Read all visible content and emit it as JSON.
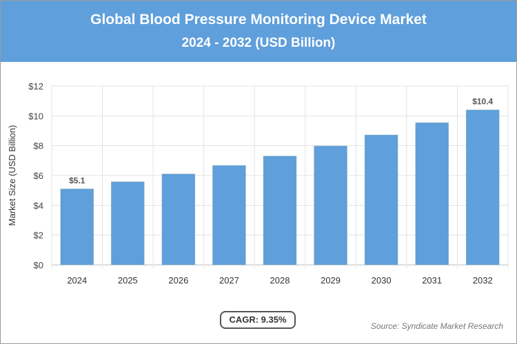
{
  "chart_data": {
    "type": "bar",
    "title": "Global Blood Pressure Monitoring Device Market",
    "subtitle": "2024 - 2032 (USD Billion)",
    "xlabel": "",
    "ylabel": "Market Size (USD Billion)",
    "categories": [
      "2024",
      "2025",
      "2026",
      "2027",
      "2028",
      "2029",
      "2030",
      "2031",
      "2032"
    ],
    "values": [
      5.1,
      5.58,
      6.1,
      6.67,
      7.3,
      7.98,
      8.72,
      9.54,
      10.4
    ],
    "data_labels": {
      "0": "$5.1",
      "8": "$10.4"
    },
    "ylim": [
      0,
      12
    ],
    "yticks": [
      "$0",
      "$2",
      "$4",
      "$6",
      "$8",
      "$10",
      "$12"
    ],
    "grid": true,
    "bar_color": "#5f9fdb"
  },
  "cagr_label": "CAGR: 9.35%",
  "source": "Source: Syndicate Market Research"
}
